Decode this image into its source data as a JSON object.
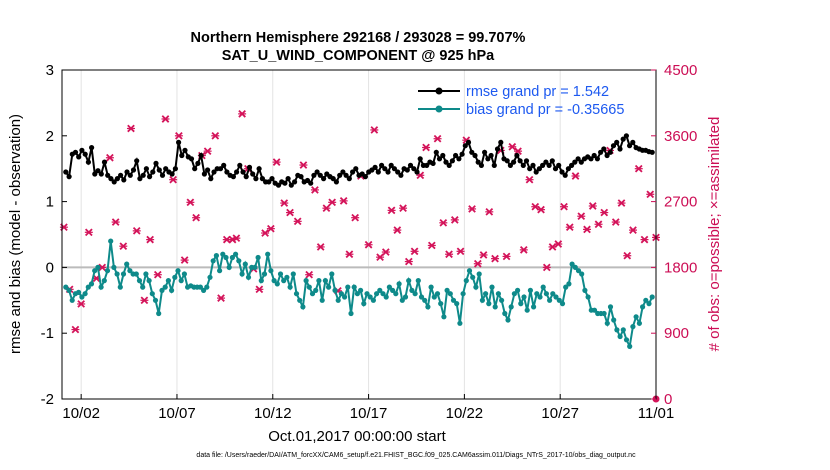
{
  "chart_data": {
    "type": "line",
    "title": "Northern Hemisphere 292168 / 293028 = 99.707%",
    "subtitle": "SAT_U_WIND_COMPONENT @ 925 hPa",
    "xlabel": "Oct.01,2017 00:00:00 start",
    "ylabel": "rmse and bias (model - observation)",
    "ylabel_right": "# of obs: o=possible; ×=assimilated",
    "footnote": "data file: /Users/raeder/DAI/ATM_forcXX/CAM6_setup/f.e21.FHIST_BGC.f09_025.CAM6assim.011/Diags_NTrS_2017-10/obs_diag_output.nc",
    "x_ticks": [
      "10/02",
      "10/07",
      "10/12",
      "10/17",
      "10/22",
      "10/27",
      "11/01"
    ],
    "y_ticks": [
      "-2",
      "-1",
      "0",
      "1",
      "2",
      "3"
    ],
    "y_ticks_right": [
      "0",
      "900",
      "1800",
      "2700",
      "3600",
      "4500"
    ],
    "ylim": [
      -2,
      3
    ],
    "ylim_right": [
      0,
      4500
    ],
    "xlim_days": [
      0,
      31
    ],
    "x_tick_days": [
      1,
      6,
      11,
      16,
      21,
      26,
      31
    ],
    "grid": "vertical only",
    "legend_position": "top-right",
    "colors": {
      "rmse": "#000000",
      "bias": "#0e8a8a",
      "obs": "#d4145a",
      "axis_right": "#cc0e55",
      "legend_text": "#1d59f0",
      "zero_line": "#bbbbbb"
    },
    "series": [
      {
        "name": "rmse grand pr = 1.542",
        "values": [
          1.45,
          1.38,
          1.72,
          1.75,
          1.68,
          1.78,
          1.72,
          1.6,
          1.82,
          1.42,
          1.47,
          1.42,
          1.6,
          1.4,
          1.35,
          1.3,
          1.35,
          1.4,
          1.33,
          1.45,
          1.4,
          1.48,
          1.62,
          1.35,
          1.4,
          1.5,
          1.38,
          1.45,
          1.58,
          1.48,
          1.4,
          1.5,
          1.45,
          1.42,
          1.5,
          1.9,
          1.7,
          1.78,
          1.68,
          1.65,
          1.5,
          1.58,
          1.7,
          1.42,
          1.48,
          1.35,
          1.45,
          1.5,
          1.5,
          1.55,
          1.45,
          1.4,
          1.38,
          1.45,
          1.55,
          1.45,
          1.38,
          1.52,
          1.42,
          1.35,
          1.5,
          1.35,
          1.3,
          1.3,
          1.35,
          1.28,
          1.25,
          1.3,
          1.28,
          1.35,
          1.25,
          1.3,
          1.4,
          1.38,
          1.3,
          1.32,
          1.28,
          1.4,
          1.45,
          1.4,
          1.35,
          1.42,
          1.38,
          1.35,
          1.3,
          1.4,
          1.45,
          1.4,
          1.35,
          1.45,
          1.5,
          1.4,
          1.42,
          1.38,
          1.45,
          1.48,
          1.52,
          1.45,
          1.55,
          1.5,
          1.45,
          1.55,
          1.5,
          1.45,
          1.4,
          1.5,
          1.48,
          1.55,
          1.5,
          1.45,
          1.65,
          1.55,
          1.55,
          1.6,
          1.58,
          1.75,
          1.65,
          1.7,
          1.6,
          1.55,
          1.62,
          1.7,
          1.65,
          1.72,
          1.85,
          1.9,
          1.75,
          1.7,
          1.6,
          1.55,
          1.75,
          1.65,
          1.7,
          1.55,
          1.8,
          1.9,
          1.65,
          1.62,
          1.55,
          1.6,
          1.7,
          1.62,
          1.55,
          1.62,
          1.5,
          1.55,
          1.45,
          1.5,
          1.55,
          1.6,
          1.55,
          1.62,
          1.5,
          1.55,
          1.45,
          1.4,
          1.5,
          1.55,
          1.6,
          1.65,
          1.6,
          1.65,
          1.68,
          1.65,
          1.7,
          1.65,
          1.75,
          1.8,
          1.7,
          1.75,
          1.85,
          1.9,
          1.8,
          1.95,
          2.0,
          1.85,
          1.9,
          1.82,
          1.8,
          1.78,
          1.78,
          1.76,
          1.75
        ]
      },
      {
        "name": "bias grand pr = -0.35665",
        "values": [
          -0.3,
          -0.35,
          -0.5,
          -0.4,
          -0.38,
          -0.45,
          -0.4,
          -0.3,
          -0.25,
          -0.05,
          0.0,
          -0.3,
          -0.2,
          -0.05,
          0.4,
          0.0,
          -0.1,
          -0.3,
          -0.1,
          0.05,
          -0.05,
          -0.1,
          -0.1,
          -0.2,
          -0.3,
          -0.1,
          -0.2,
          -0.4,
          -0.5,
          -0.7,
          -0.35,
          -0.3,
          -0.2,
          -0.35,
          -0.15,
          -0.05,
          -0.2,
          -0.1,
          -0.3,
          -0.28,
          -0.3,
          -0.3,
          -0.3,
          -0.35,
          -0.3,
          -0.15,
          0.1,
          0.18,
          -0.05,
          0.2,
          0.15,
          0.0,
          0.15,
          0.2,
          0.1,
          -0.1,
          0.05,
          -0.15,
          0.0,
          0.0,
          0.15,
          -0.2,
          -0.1,
          0.2,
          -0.05,
          -0.2,
          -0.25,
          -0.1,
          -0.2,
          -0.15,
          -0.3,
          -0.1,
          -0.4,
          -0.5,
          -0.6,
          -0.2,
          -0.3,
          -0.4,
          -0.35,
          -0.2,
          -0.5,
          -0.2,
          -0.3,
          -0.1,
          -0.35,
          -0.5,
          -0.4,
          -0.45,
          -0.3,
          -0.7,
          -0.3,
          -0.4,
          -0.35,
          -0.55,
          -0.4,
          -0.45,
          -0.5,
          -0.4,
          -0.35,
          -0.4,
          -0.45,
          -0.3,
          -0.35,
          -0.4,
          -0.25,
          -0.5,
          -0.45,
          -0.2,
          -0.35,
          -0.4,
          -0.2,
          -0.45,
          -0.5,
          -0.6,
          -0.3,
          -0.45,
          -0.4,
          -0.55,
          -0.75,
          -0.35,
          -0.4,
          -0.5,
          -0.55,
          -0.85,
          -0.4,
          -0.2,
          -0.05,
          -0.15,
          -0.3,
          -0.1,
          -0.5,
          -0.4,
          -0.55,
          -0.3,
          -0.6,
          -0.4,
          -0.5,
          -0.7,
          -0.8,
          -0.6,
          -0.4,
          -0.35,
          -0.55,
          -0.45,
          -0.65,
          -0.35,
          -0.6,
          -0.4,
          -0.45,
          -0.3,
          -0.4,
          -0.5,
          -0.4,
          -0.45,
          -0.5,
          -0.55,
          -0.3,
          -0.25,
          0.05,
          0.0,
          -0.05,
          -0.1,
          -0.35,
          -0.45,
          -0.65,
          -0.65,
          -0.7,
          -0.7,
          -0.7,
          -0.85,
          -0.6,
          -0.8,
          -0.95,
          -1.05,
          -0.95,
          -1.1,
          -1.2,
          -0.9,
          -0.75,
          -0.85,
          -0.6,
          -0.5,
          -0.55,
          -0.45
        ]
      },
      {
        "name": "obs count (× assimilated)",
        "axis": "right",
        "x_days": [
          0.1,
          0.4,
          0.7,
          1.0,
          1.4,
          1.8,
          2.1,
          2.5,
          2.8,
          3.2,
          3.6,
          3.9,
          4.3,
          4.6,
          5.0,
          5.4,
          5.8,
          6.1,
          6.4,
          6.7,
          7.0,
          7.3,
          7.6,
          8.0,
          8.3,
          8.6,
          8.9,
          9.1,
          9.4,
          9.7,
          10.0,
          10.3,
          10.6,
          10.9,
          11.2,
          11.6,
          11.9,
          12.3,
          12.6,
          12.9,
          13.2,
          13.5,
          13.8,
          14.1,
          14.4,
          14.7,
          15.0,
          15.3,
          15.6,
          16.0,
          16.3,
          16.6,
          16.9,
          17.2,
          17.5,
          17.8,
          18.1,
          18.4,
          18.7,
          19.0,
          19.3,
          19.6,
          19.9,
          20.2,
          20.5,
          20.8,
          21.1,
          21.4,
          21.7,
          22.0,
          22.3,
          22.6,
          22.9,
          23.2,
          23.5,
          23.8,
          24.1,
          24.4,
          24.7,
          25.0,
          25.3,
          25.6,
          25.9,
          26.2,
          26.5,
          26.8,
          27.1,
          27.4,
          27.7,
          28.0,
          28.3,
          28.6,
          28.9,
          29.2,
          29.5,
          29.8,
          30.1,
          30.4,
          30.7,
          31.0
        ],
        "values": [
          2350,
          1500,
          950,
          1300,
          2280,
          1650,
          1800,
          3300,
          2420,
          2090,
          3700,
          2300,
          1350,
          2180,
          1700,
          3830,
          3000,
          3600,
          1900,
          2690,
          2480,
          3330,
          3390,
          3600,
          1380,
          2180,
          2180,
          2200,
          3900,
          3150,
          1780,
          1500,
          2270,
          2330,
          3240,
          2680,
          2550,
          2430,
          3200,
          1700,
          2860,
          2080,
          2610,
          2690,
          1480,
          2710,
          1980,
          2480,
          3050,
          2110,
          3680,
          1940,
          2010,
          2580,
          2310,
          2610,
          1880,
          2020,
          3060,
          3440,
          2100,
          3560,
          2410,
          1980,
          2450,
          2020,
          3540,
          2600,
          1850,
          1970,
          2560,
          1920,
          3400,
          1950,
          3450,
          3390,
          2040,
          3000,
          2630,
          2590,
          1800,
          2080,
          2120,
          2630,
          2350,
          3050,
          2500,
          2320,
          2640,
          2390,
          2550,
          3400,
          2420,
          2680,
          1960,
          2310,
          3150,
          2180,
          2800,
          2210
        ]
      }
    ]
  }
}
